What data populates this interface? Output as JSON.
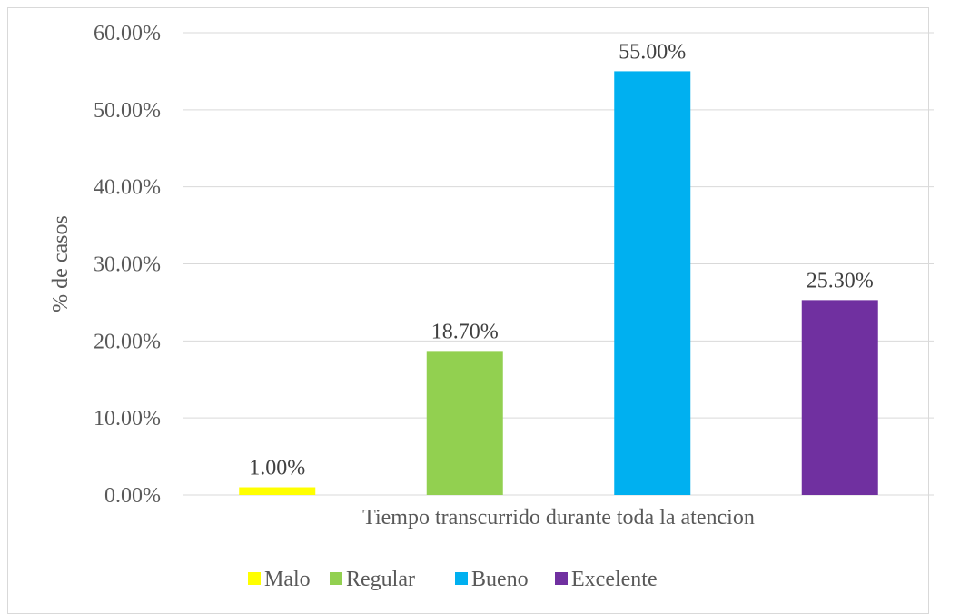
{
  "chart_data": {
    "type": "bar",
    "xlabel": "Tiempo transcurrido durante toda la atencion",
    "ylabel": "% de casos",
    "ylim": [
      0,
      60
    ],
    "yticks": [
      "0.00%",
      "10.00%",
      "20.00%",
      "30.00%",
      "40.00%",
      "50.00%",
      "60.00%"
    ],
    "grid": true,
    "legend_position": "bottom",
    "series": [
      {
        "name": "Malo",
        "value": 1.0,
        "label": "1.00%",
        "color": "#ffff00"
      },
      {
        "name": "Regular",
        "value": 18.7,
        "label": "18.70%",
        "color": "#92d050"
      },
      {
        "name": "Bueno",
        "value": 55.0,
        "label": "55.00%",
        "color": "#00b0f0"
      },
      {
        "name": "Excelente",
        "value": 25.3,
        "label": "25.30%",
        "color": "#7030a0"
      }
    ]
  }
}
